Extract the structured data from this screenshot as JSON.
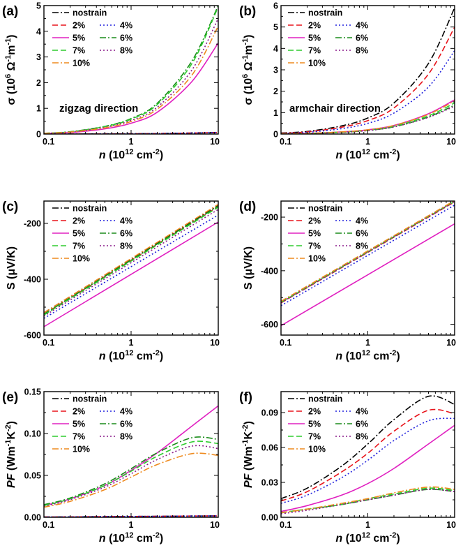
{
  "figure": {
    "legend_names": [
      "nostrain",
      "2%",
      "4%",
      "5%",
      "6%",
      "7%",
      "8%",
      "10%"
    ],
    "series_colors": [
      "#000000",
      "#e8141b",
      "#2222dd",
      "#e020c0",
      "#1a8c1a",
      "#2ecc2e",
      "#8a1a8a",
      "#ee8a1e"
    ],
    "dash_styles": [
      "dashdot",
      "dash",
      "dot",
      "solid",
      "dashdot",
      "dash",
      "dot",
      "dashdot"
    ],
    "x_axis_label_italic": "n",
    "x_axis_label_rest": " (10",
    "x_axis_exp": "12",
    "x_axis_unit": " cm",
    "x_axis_unit_exp": "-2",
    "x_axis_close": ")",
    "x_ticks": [
      "0.1",
      "1",
      "10"
    ]
  },
  "chart_data": [
    {
      "panel": "(a)",
      "type": "line",
      "xscale": "log",
      "xlim": [
        0.1,
        10
      ],
      "ylim": [
        0,
        5
      ],
      "y_ticks": [
        "0",
        "1",
        "2",
        "3",
        "4",
        "5"
      ],
      "ylabel_parts": [
        "σ (10",
        "6",
        " Ω",
        "-1",
        "m",
        "-1",
        ")"
      ],
      "annotation": "zigzag direction",
      "x": [
        0.1,
        0.2,
        0.5,
        1,
        2,
        5,
        10
      ],
      "series": [
        {
          "name": "nostrain",
          "values": [
            0.002,
            0.003,
            0.007,
            0.012,
            0.02,
            0.038,
            0.06
          ]
        },
        {
          "name": "2%",
          "values": [
            0.002,
            0.003,
            0.007,
            0.012,
            0.02,
            0.038,
            0.06
          ]
        },
        {
          "name": "4%",
          "values": [
            0.002,
            0.003,
            0.007,
            0.012,
            0.02,
            0.038,
            0.06
          ]
        },
        {
          "name": "5%",
          "values": [
            0.02,
            0.06,
            0.2,
            0.42,
            0.85,
            2.05,
            3.55
          ]
        },
        {
          "name": "6%",
          "values": [
            0.03,
            0.09,
            0.3,
            0.6,
            1.2,
            2.85,
            5.0
          ]
        },
        {
          "name": "7%",
          "values": [
            0.03,
            0.085,
            0.29,
            0.58,
            1.15,
            2.75,
            4.95
          ]
        },
        {
          "name": "8%",
          "values": [
            0.026,
            0.08,
            0.26,
            0.53,
            1.05,
            2.5,
            4.5
          ]
        },
        {
          "name": "10%",
          "values": [
            0.024,
            0.075,
            0.24,
            0.49,
            0.97,
            2.3,
            4.2
          ]
        }
      ]
    },
    {
      "panel": "(b)",
      "type": "line",
      "xscale": "log",
      "xlim": [
        0.1,
        10
      ],
      "ylim": [
        0,
        6
      ],
      "y_ticks": [
        "0",
        "1",
        "2",
        "3",
        "4",
        "5",
        "6"
      ],
      "ylabel_parts": [
        "σ (10",
        "6",
        " Ω",
        "-1",
        "m",
        "-1",
        ")"
      ],
      "annotation": "armchair direction",
      "x": [
        0.1,
        0.2,
        0.5,
        1,
        2,
        5,
        10
      ],
      "series": [
        {
          "name": "nostrain",
          "values": [
            0.05,
            0.12,
            0.38,
            0.75,
            1.45,
            3.3,
            5.9
          ]
        },
        {
          "name": "2%",
          "values": [
            0.04,
            0.1,
            0.32,
            0.63,
            1.22,
            2.8,
            5.0
          ]
        },
        {
          "name": "4%",
          "values": [
            0.03,
            0.08,
            0.25,
            0.5,
            0.98,
            2.2,
            3.9
          ]
        },
        {
          "name": "5%",
          "values": [
            0.01,
            0.03,
            0.1,
            0.2,
            0.4,
            0.95,
            1.6
          ]
        },
        {
          "name": "6%",
          "values": [
            0.008,
            0.025,
            0.08,
            0.17,
            0.34,
            0.8,
            1.35
          ]
        },
        {
          "name": "7%",
          "values": [
            0.009,
            0.028,
            0.09,
            0.18,
            0.36,
            0.85,
            1.45
          ]
        },
        {
          "name": "8%",
          "values": [
            0.008,
            0.024,
            0.08,
            0.16,
            0.33,
            0.78,
            1.3
          ]
        },
        {
          "name": "10%",
          "values": [
            0.01,
            0.03,
            0.1,
            0.2,
            0.4,
            0.92,
            1.55
          ]
        }
      ]
    },
    {
      "panel": "(c)",
      "type": "line",
      "xscale": "log",
      "xlim": [
        0.1,
        10
      ],
      "ylim": [
        -600,
        -120
      ],
      "y_ticks": [
        "-200",
        "-400",
        "-600"
      ],
      "y_tick_values": [
        -200,
        -400,
        -600
      ],
      "ylabel_parts": [
        "S (",
        "μ",
        "V/K)"
      ],
      "x": [
        0.1,
        10
      ],
      "series": [
        {
          "name": "nostrain",
          "values": [
            -520,
            -135
          ]
        },
        {
          "name": "2%",
          "values": [
            -525,
            -140
          ]
        },
        {
          "name": "4%",
          "values": [
            -540,
            -170
          ]
        },
        {
          "name": "5%",
          "values": [
            -570,
            -195
          ]
        },
        {
          "name": "6%",
          "values": [
            -525,
            -138
          ]
        },
        {
          "name": "7%",
          "values": [
            -528,
            -142
          ]
        },
        {
          "name": "8%",
          "values": [
            -532,
            -150
          ]
        },
        {
          "name": "10%",
          "values": [
            -520,
            -132
          ]
        }
      ]
    },
    {
      "panel": "(d)",
      "type": "line",
      "xscale": "log",
      "xlim": [
        0.1,
        10
      ],
      "ylim": [
        -640,
        -140
      ],
      "y_ticks": [
        "-200",
        "-400",
        "-600"
      ],
      "y_tick_values": [
        -200,
        -400,
        -600
      ],
      "ylabel_parts": [
        "S (",
        "μ",
        "V/K)"
      ],
      "x": [
        0.1,
        10
      ],
      "series": [
        {
          "name": "nostrain",
          "values": [
            -515,
            -140
          ]
        },
        {
          "name": "2%",
          "values": [
            -520,
            -143
          ]
        },
        {
          "name": "4%",
          "values": [
            -530,
            -155
          ]
        },
        {
          "name": "5%",
          "values": [
            -605,
            -225
          ]
        },
        {
          "name": "6%",
          "values": [
            -517,
            -140
          ]
        },
        {
          "name": "7%",
          "values": [
            -518,
            -141
          ]
        },
        {
          "name": "8%",
          "values": [
            -519,
            -142
          ]
        },
        {
          "name": "10%",
          "values": [
            -514,
            -138
          ]
        }
      ]
    },
    {
      "panel": "(e)",
      "type": "line",
      "xscale": "log",
      "xlim": [
        0.1,
        10
      ],
      "ylim": [
        0,
        0.15
      ],
      "y_ticks": [
        "0.00",
        "0.05",
        "0.10",
        "0.15"
      ],
      "y_tick_values": [
        0,
        0.05,
        0.1,
        0.15
      ],
      "ylabel_parts": [
        "PF",
        " (Wm",
        "-1",
        "K",
        "-2",
        ")"
      ],
      "x": [
        0.1,
        0.2,
        0.5,
        1,
        2,
        5,
        10
      ],
      "series": [
        {
          "name": "nostrain",
          "values": [
            0.0003,
            0.0005,
            0.0008,
            0.001,
            0.0012,
            0.0015,
            0.0016
          ]
        },
        {
          "name": "2%",
          "values": [
            0.0003,
            0.0005,
            0.0008,
            0.001,
            0.0012,
            0.0015,
            0.0016
          ]
        },
        {
          "name": "4%",
          "values": [
            0.0003,
            0.0005,
            0.0008,
            0.001,
            0.0012,
            0.0015,
            0.0016
          ]
        },
        {
          "name": "5%",
          "values": [
            0.014,
            0.022,
            0.038,
            0.056,
            0.077,
            0.109,
            0.133
          ]
        },
        {
          "name": "6%",
          "values": [
            0.015,
            0.023,
            0.04,
            0.058,
            0.077,
            0.095,
            0.093
          ]
        },
        {
          "name": "7%",
          "values": [
            0.014,
            0.022,
            0.038,
            0.055,
            0.073,
            0.09,
            0.088
          ]
        },
        {
          "name": "8%",
          "values": [
            0.013,
            0.021,
            0.036,
            0.052,
            0.069,
            0.085,
            0.082
          ]
        },
        {
          "name": "10%",
          "values": [
            0.012,
            0.019,
            0.033,
            0.048,
            0.063,
            0.076,
            0.074
          ]
        }
      ]
    },
    {
      "panel": "(f)",
      "type": "line",
      "xscale": "log",
      "xlim": [
        0.1,
        10
      ],
      "ylim": [
        0,
        0.108
      ],
      "y_ticks": [
        "0.00",
        "0.03",
        "0.06",
        "0.09"
      ],
      "y_tick_values": [
        0,
        0.03,
        0.06,
        0.09
      ],
      "ylabel_parts": [
        "PF",
        " (Wm",
        "-1",
        "K",
        "-2",
        ")"
      ],
      "x": [
        0.1,
        0.2,
        0.5,
        1,
        2,
        5,
        10
      ],
      "series": [
        {
          "name": "nostrain",
          "values": [
            0.016,
            0.025,
            0.044,
            0.063,
            0.084,
            0.104,
            0.097
          ]
        },
        {
          "name": "2%",
          "values": [
            0.014,
            0.022,
            0.039,
            0.055,
            0.074,
            0.092,
            0.089
          ]
        },
        {
          "name": "4%",
          "values": [
            0.012,
            0.019,
            0.034,
            0.049,
            0.066,
            0.083,
            0.085
          ]
        },
        {
          "name": "5%",
          "values": [
            0.005,
            0.01,
            0.019,
            0.029,
            0.042,
            0.063,
            0.079
          ]
        },
        {
          "name": "6%",
          "values": [
            0.004,
            0.007,
            0.011,
            0.015,
            0.019,
            0.024,
            0.022
          ]
        },
        {
          "name": "7%",
          "values": [
            0.004,
            0.007,
            0.011,
            0.016,
            0.02,
            0.025,
            0.023
          ]
        },
        {
          "name": "8%",
          "values": [
            0.003,
            0.006,
            0.011,
            0.015,
            0.019,
            0.024,
            0.022
          ]
        },
        {
          "name": "10%",
          "values": [
            0.004,
            0.007,
            0.012,
            0.016,
            0.021,
            0.026,
            0.024
          ]
        }
      ]
    }
  ]
}
